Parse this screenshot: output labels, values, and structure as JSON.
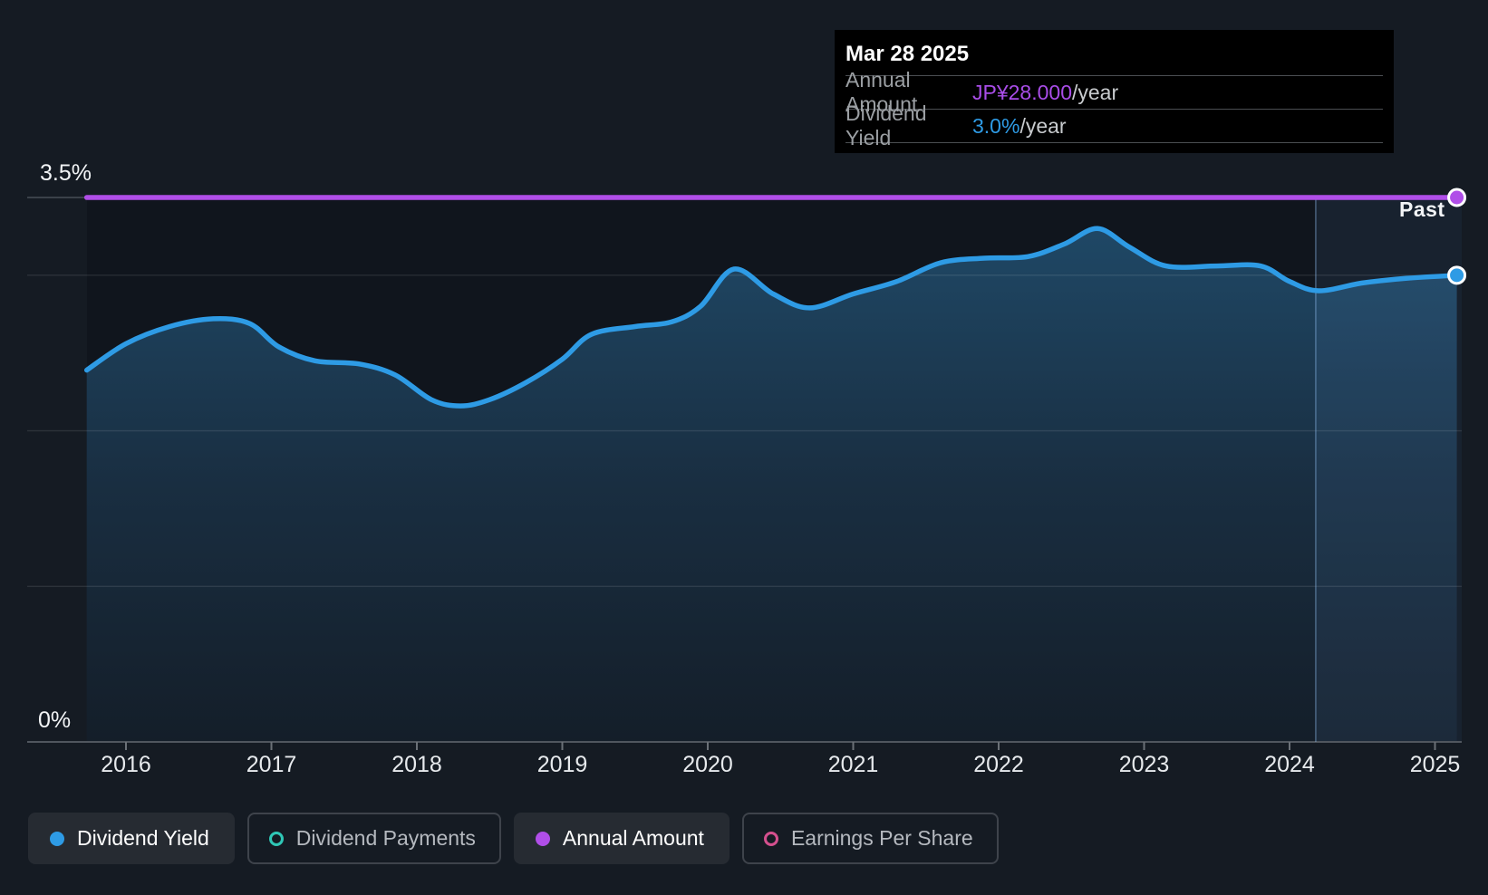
{
  "page": {
    "background": "#151B23"
  },
  "labels": {
    "past": "Past",
    "y_top": "3.5%",
    "y_bottom": "0%"
  },
  "tooltip": {
    "date": "Mar 28 2025",
    "rows": [
      {
        "label": "Annual Amount",
        "value": "JP¥28.000",
        "suffix": "/year",
        "value_color": "#A94DE8"
      },
      {
        "label": "Dividend Yield",
        "value": "3.0%",
        "suffix": "/year",
        "value_color": "#2E9BE5"
      }
    ]
  },
  "legend": {
    "items": [
      {
        "label": "Dividend Yield",
        "marker": "dot",
        "color": "#2E9BE5",
        "active": true
      },
      {
        "label": "Dividend Payments",
        "marker": "ring",
        "color": "#2FC7B6",
        "active": false
      },
      {
        "label": "Annual Amount",
        "marker": "dot",
        "color": "#B04EE8",
        "active": true
      },
      {
        "label": "Earnings Per Share",
        "marker": "ring",
        "color": "#D4508E",
        "active": false
      }
    ]
  },
  "colors": {
    "dividend_yield_line": "#2E9BE5",
    "annual_amount_line": "#B04EE8",
    "area_gradient": [
      "#1F4866",
      "#192E41",
      "#141E29"
    ],
    "plot_bg": "#10151D",
    "past_highlight": "rgba(110,170,230,0.09)",
    "gridline": "rgba(255,255,255,0.10)",
    "gridline_top_stub": "#3A4149",
    "axis_line": "#50565E",
    "tick": "#6B7077",
    "divider": "rgba(140,185,230,0.45)",
    "marker_stroke": "#FFFFFF"
  },
  "chart_data": {
    "type": "area",
    "x_ticks": [
      "2016",
      "2017",
      "2018",
      "2019",
      "2020",
      "2021",
      "2022",
      "2023",
      "2024",
      "2025"
    ],
    "x_range": [
      2015.73,
      2025.15
    ],
    "y_range_pct": [
      0,
      3.5
    ],
    "y_axis_labels": {
      "top": "3.5%",
      "bottom": "0%"
    },
    "gridlines_pct": [
      1,
      2,
      3
    ],
    "past_divider_year": 2024.18,
    "series": [
      {
        "name": "Dividend Yield",
        "render": "area-line",
        "color": "#2E9BE5",
        "current_value": "3.0%/year",
        "points": [
          [
            2015.73,
            2.39
          ],
          [
            2016.0,
            2.56
          ],
          [
            2016.3,
            2.67
          ],
          [
            2016.6,
            2.72
          ],
          [
            2016.85,
            2.69
          ],
          [
            2017.05,
            2.54
          ],
          [
            2017.3,
            2.45
          ],
          [
            2017.6,
            2.43
          ],
          [
            2017.85,
            2.36
          ],
          [
            2018.1,
            2.2
          ],
          [
            2018.3,
            2.16
          ],
          [
            2018.5,
            2.2
          ],
          [
            2018.75,
            2.31
          ],
          [
            2019.0,
            2.46
          ],
          [
            2019.2,
            2.62
          ],
          [
            2019.5,
            2.67
          ],
          [
            2019.75,
            2.7
          ],
          [
            2019.95,
            2.8
          ],
          [
            2020.18,
            3.04
          ],
          [
            2020.45,
            2.88
          ],
          [
            2020.7,
            2.79
          ],
          [
            2021.0,
            2.88
          ],
          [
            2021.3,
            2.96
          ],
          [
            2021.6,
            3.08
          ],
          [
            2021.9,
            3.11
          ],
          [
            2022.2,
            3.12
          ],
          [
            2022.45,
            3.2
          ],
          [
            2022.68,
            3.3
          ],
          [
            2022.9,
            3.18
          ],
          [
            2023.15,
            3.06
          ],
          [
            2023.5,
            3.06
          ],
          [
            2023.8,
            3.06
          ],
          [
            2024.0,
            2.96
          ],
          [
            2024.2,
            2.9
          ],
          [
            2024.5,
            2.95
          ],
          [
            2024.8,
            2.98
          ],
          [
            2025.15,
            3.0
          ]
        ]
      },
      {
        "name": "Annual Amount",
        "render": "line",
        "color": "#B04EE8",
        "current_value": "JP¥28.000/year",
        "plotted_at_pct": 3.5,
        "points": [
          [
            2015.73,
            3.5
          ],
          [
            2025.15,
            3.5
          ]
        ]
      }
    ]
  }
}
